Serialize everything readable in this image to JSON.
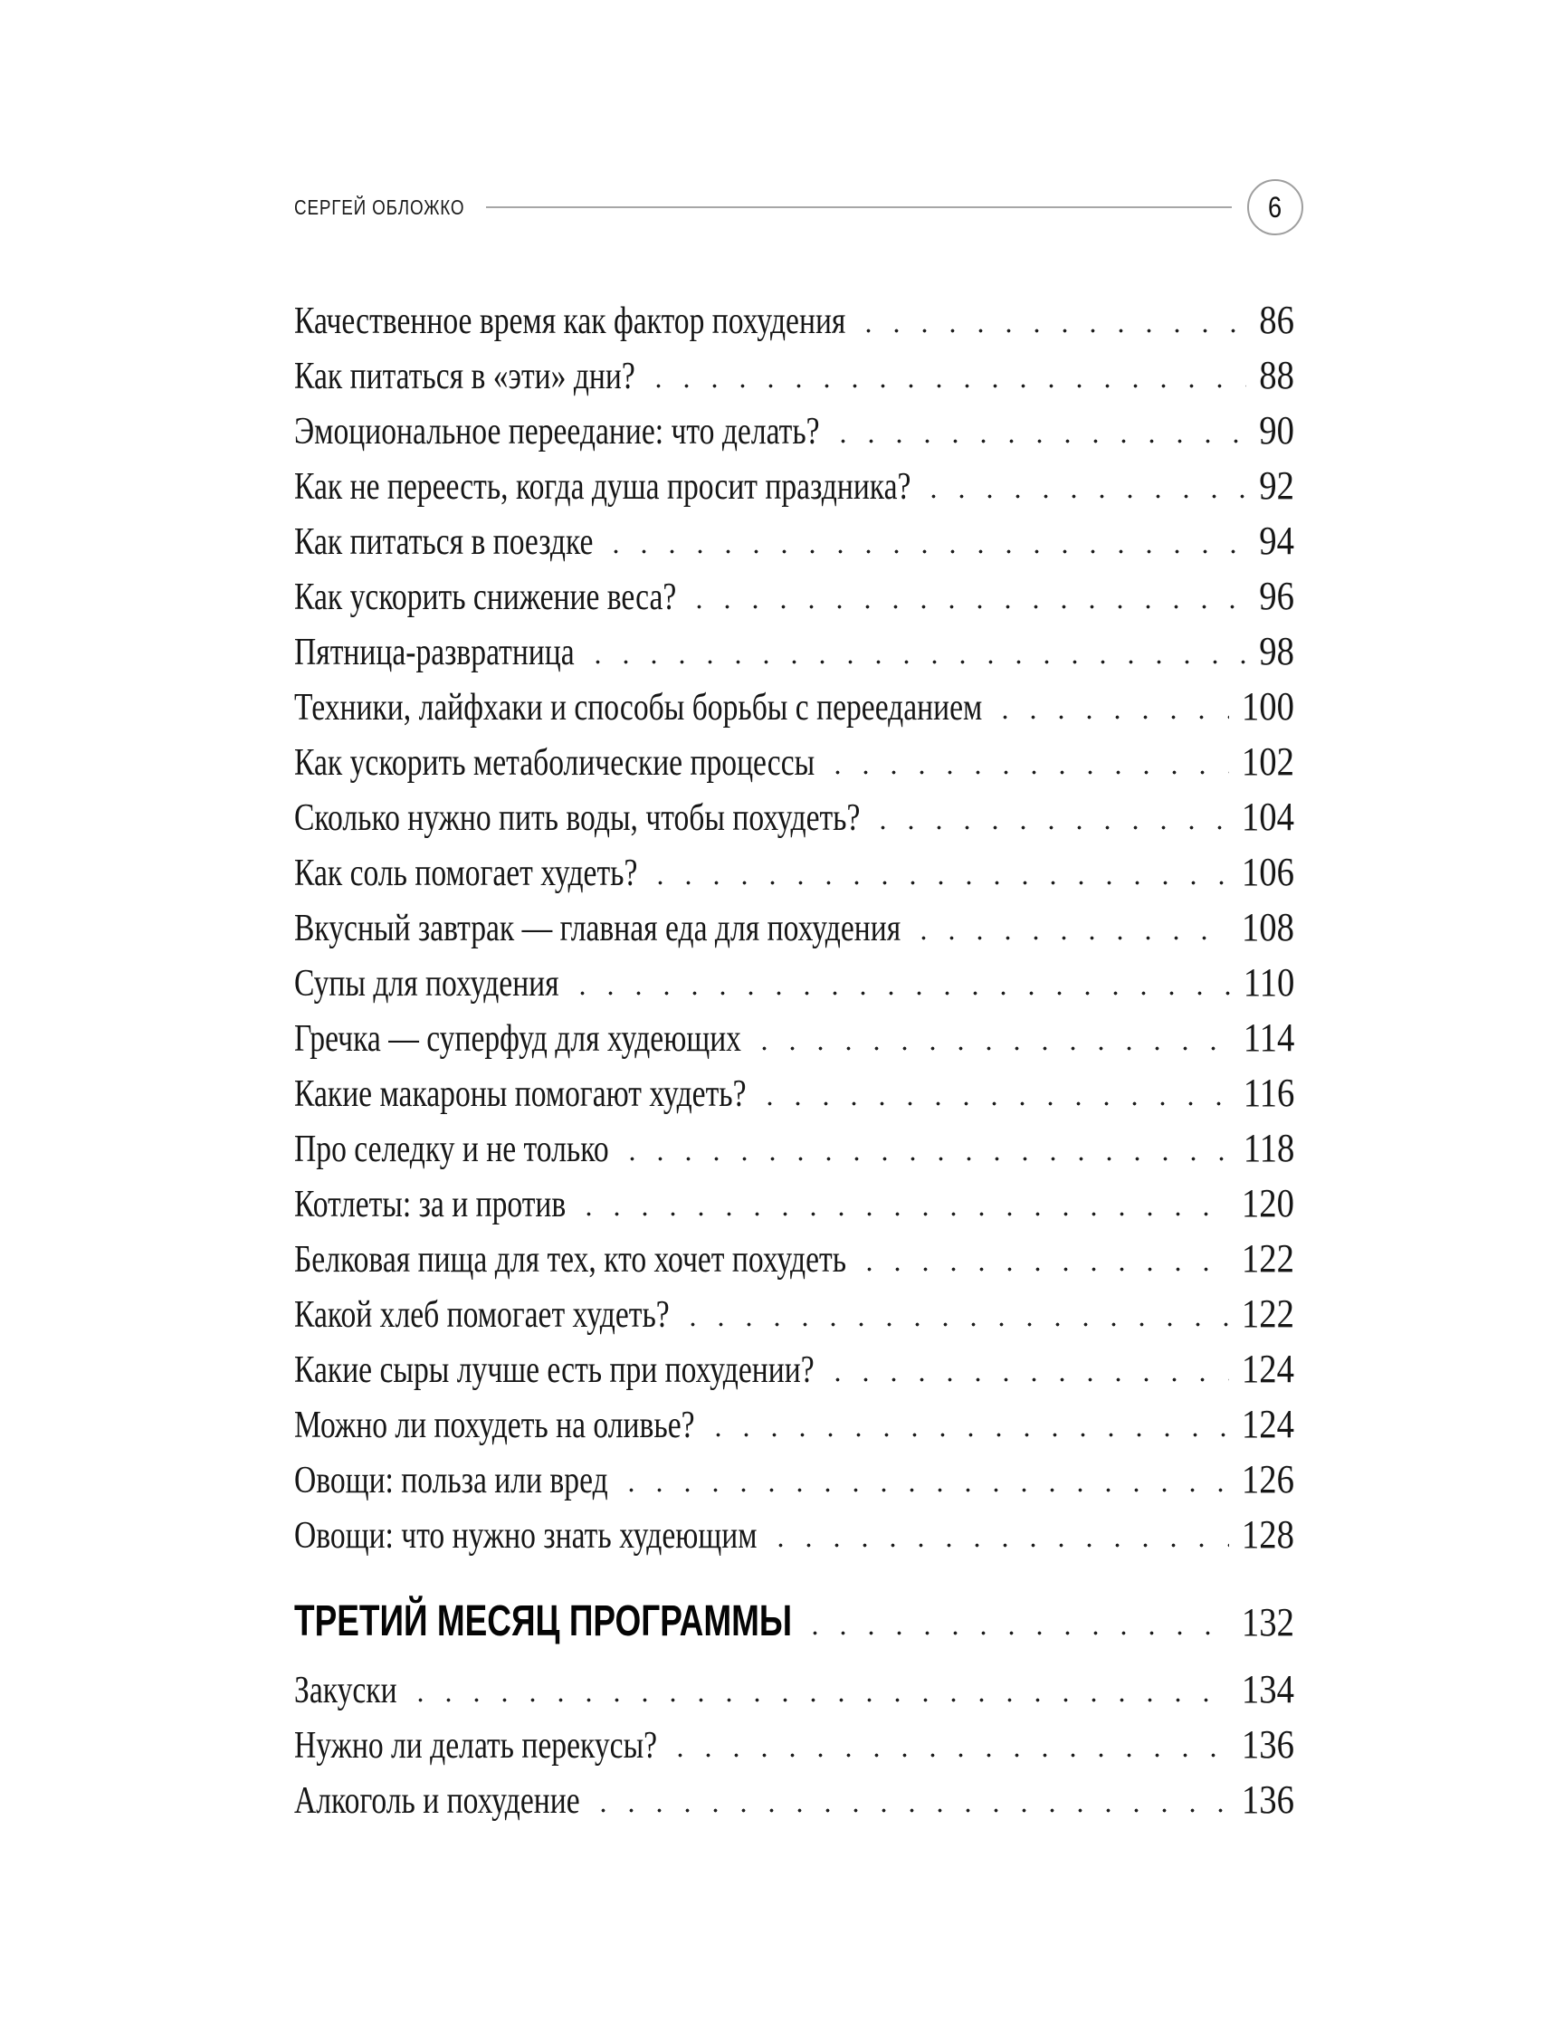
{
  "header": {
    "author": "СЕРГЕЙ ОБЛОЖКО",
    "page_number": "6"
  },
  "toc": {
    "entries_before_section": [
      {
        "title": "Качественное время как фактор похудения",
        "page": "86"
      },
      {
        "title": "Как питаться в «эти» дни?",
        "page": "88"
      },
      {
        "title": "Эмоциональное переедание: что делать?",
        "page": "90"
      },
      {
        "title": "Как не переесть, когда душа просит праздника?",
        "page": "92"
      },
      {
        "title": "Как питаться в поездке",
        "page": "94"
      },
      {
        "title": "Как ускорить снижение веса?",
        "page": "96"
      },
      {
        "title": "Пятница-развратница",
        "page": "98"
      },
      {
        "title": "Техники, лайфхаки и способы борьбы с перееданием",
        "page": "100"
      },
      {
        "title": "Как ускорить метаболические процессы",
        "page": "102"
      },
      {
        "title": "Сколько нужно пить воды, чтобы похудеть?",
        "page": "104"
      },
      {
        "title": "Как соль помогает худеть?",
        "page": "106"
      },
      {
        "title": "Вкусный завтрак — главная еда для похудения",
        "page": "108"
      },
      {
        "title": "Супы для похудения",
        "page": "110"
      },
      {
        "title": "Гречка — суперфуд для худеющих",
        "page": "114"
      },
      {
        "title": "Какие макароны помогают худеть?",
        "page": "116"
      },
      {
        "title": "Про селедку и не только",
        "page": "118"
      },
      {
        "title": "Котлеты: за и против",
        "page": "120"
      },
      {
        "title": "Белковая пища для тех, кто хочет похудеть",
        "page": "122"
      },
      {
        "title": "Какой хлеб помогает худеть?",
        "page": "122"
      },
      {
        "title": "Какие сыры лучше есть при похудении?",
        "page": "124"
      },
      {
        "title": "Можно ли похудеть на оливье?",
        "page": "124"
      },
      {
        "title": "Овощи: польза или вред",
        "page": "126"
      },
      {
        "title": "Овощи: что нужно знать худеющим",
        "page": "128"
      }
    ],
    "section_heading": {
      "title": "ТРЕТИЙ МЕСЯЦ ПРОГРАММЫ",
      "page": "132"
    },
    "entries_after_section": [
      {
        "title": "Закуски",
        "page": "134"
      },
      {
        "title": "Нужно ли делать перекусы?",
        "page": "136"
      },
      {
        "title": "Алкоголь и похудение",
        "page": "136"
      }
    ]
  },
  "colors": {
    "background": "#ffffff",
    "text": "#161616",
    "header_rule": "#a6a6a6",
    "badge_border": "#9e9e9e",
    "leader_dots": "#1c1c1c"
  }
}
